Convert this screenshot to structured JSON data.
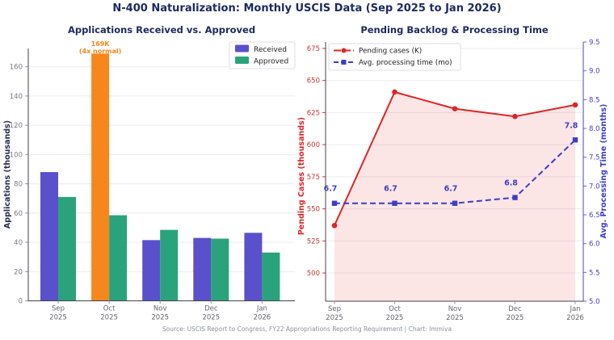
{
  "page": {
    "title": "N-400 Naturalization: Monthly USCIS Data (Sep 2025 to Jan 2026)",
    "footer": "Source: USCIS Report to Congress, FY22 Appropriations Reporting Requirement  |  Chart: Immiva"
  },
  "colors": {
    "title_navy": "#1c2a5e",
    "axis_label_navy": "#2b2b52",
    "received_purple": "#5a50cb",
    "approved_green": "#2aa37d",
    "highlight_orange": "#f6871d",
    "pending_red": "#dd2626",
    "processing_blue": "#3d3dc6",
    "grid": "#ebebf3",
    "spine_dark": "#44444c",
    "spine_blue": "#6b63cf",
    "tick_gray": "#7a7a85",
    "xlabel_gray": "#64646e",
    "red_tick": "#d03434",
    "blue_tick": "#4343c8",
    "area_pink": "rgba(221,38,38,0.12)",
    "legend_text": "#222222"
  },
  "chart_data": [
    {
      "type": "bar",
      "title": "Applications Received vs. Approved",
      "categories": [
        "Sep 2025",
        "Oct 2025",
        "Nov 2025",
        "Dec 2025",
        "Jan 2026"
      ],
      "series": [
        {
          "name": "Received",
          "values": [
            88,
            169,
            41.5,
            43,
            46.5
          ],
          "color": "#5a50cb"
        },
        {
          "name": "Approved",
          "values": [
            71,
            58.5,
            48.5,
            42.5,
            33
          ],
          "color": "#2aa37d"
        }
      ],
      "highlight": {
        "series_index": 0,
        "category_index": 1,
        "color": "#f6871d",
        "label_lines": [
          "169K",
          "(4x normal)"
        ]
      },
      "ylabel": "Applications (thousands)",
      "ylim": [
        0,
        172.5
      ],
      "yticks": [
        0,
        20,
        40,
        60,
        80,
        100,
        120,
        140,
        160
      ],
      "legend_position": "top-right",
      "grid": true
    },
    {
      "type": "line",
      "title": "Pending Backlog & Processing Time",
      "categories": [
        "Sep 2025",
        "Oct 2025",
        "Nov 2025",
        "Dec 2025",
        "Jan 2026"
      ],
      "series": [
        {
          "name": "Pending cases (K)",
          "axis": "left",
          "values": [
            537,
            641,
            628,
            622,
            631
          ],
          "color": "#dd2626",
          "line_style": "solid",
          "marker": "circle",
          "area_fill": true
        },
        {
          "name": "Avg. processing time (mo)",
          "axis": "right",
          "values": [
            6.7,
            6.7,
            6.7,
            6.8,
            7.8
          ],
          "color": "#3d3dc6",
          "line_style": "dashed",
          "marker": "square",
          "point_labels": [
            "6.7",
            "6.7",
            "6.7",
            "6.8",
            "7.8"
          ]
        }
      ],
      "ylabel_left": "Pending Cases (thousands)",
      "ylabel_right": "Avg. Processing Time (months)",
      "ylim_left": [
        478,
        680
      ],
      "yticks_left": [
        500,
        525,
        550,
        575,
        600,
        625,
        650,
        675
      ],
      "ylim_right": [
        5.0,
        9.5
      ],
      "yticks_right": [
        5.0,
        5.5,
        6.0,
        6.5,
        7.0,
        7.5,
        8.0,
        8.5,
        9.0,
        9.5
      ],
      "legend_position": "top-left",
      "grid": true
    }
  ]
}
